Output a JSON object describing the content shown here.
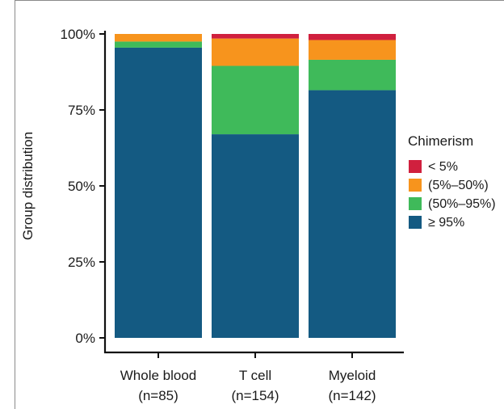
{
  "chart_data": {
    "type": "bar",
    "stacked": true,
    "categories": [
      {
        "line1": "Whole blood",
        "line2": "(n=85)"
      },
      {
        "line1": "T cell",
        "line2": "(n=154)"
      },
      {
        "line1": "Myeloid",
        "line2": "(n=142)"
      }
    ],
    "series": [
      {
        "name": "≥ 95%",
        "color": "#145a82",
        "values": [
          95.5,
          67.0,
          81.5
        ]
      },
      {
        "name": "(50%–95%)",
        "color": "#3fba5a",
        "values": [
          2.0,
          22.5,
          10.0
        ]
      },
      {
        "name": "(5%–50%)",
        "color": "#f7941d",
        "values": [
          2.5,
          9.0,
          6.5
        ]
      },
      {
        "name": "< 5%",
        "color": "#d0203e",
        "values": [
          0.0,
          1.5,
          2.0
        ]
      }
    ],
    "ylabel": "Group distribution",
    "xlabel": "",
    "title": "",
    "ylim": [
      0,
      100
    ],
    "yticks": [
      0,
      25,
      50,
      75,
      100
    ],
    "ytick_labels": [
      "0%",
      "25%",
      "50%",
      "75%",
      "100%"
    ],
    "legend": {
      "title": "Chimerism",
      "placement": "right",
      "order": [
        "< 5%",
        "(5%–50%)",
        "(50%–95%)",
        "≥ 95%"
      ]
    },
    "grid": false
  }
}
